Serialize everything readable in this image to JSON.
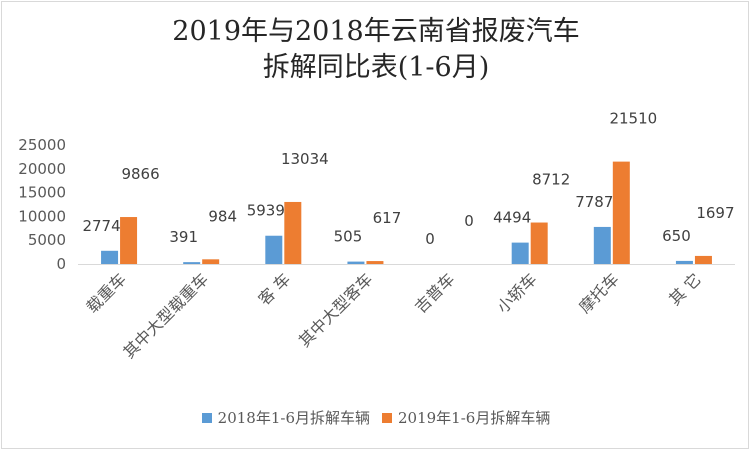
{
  "chart_data": {
    "type": "bar",
    "title_line1": "2019年与2018年云南省报废汽车",
    "title_line2": "拆解同比表(1-6月)",
    "categories": [
      "载重车",
      "其中大型载重车",
      "客 车",
      "其中大型客车",
      "吉普车",
      "小轿车",
      "摩托车",
      "其 它"
    ],
    "series": [
      {
        "name": "2018年1-6月拆解车辆",
        "color": "#5b9bd5",
        "values": [
          2774,
          391,
          5939,
          505,
          0,
          4494,
          7787,
          650
        ]
      },
      {
        "name": "2019年1-6月拆解车辆",
        "color": "#ed7d31",
        "values": [
          9866,
          984,
          13034,
          617,
          0,
          8712,
          21510,
          1697
        ]
      }
    ],
    "ylim": [
      0,
      25000
    ],
    "yticks": [
      "0",
      "5000",
      "10000",
      "15000",
      "20000",
      "25000"
    ],
    "grid": false,
    "legend_position": "bottom"
  }
}
